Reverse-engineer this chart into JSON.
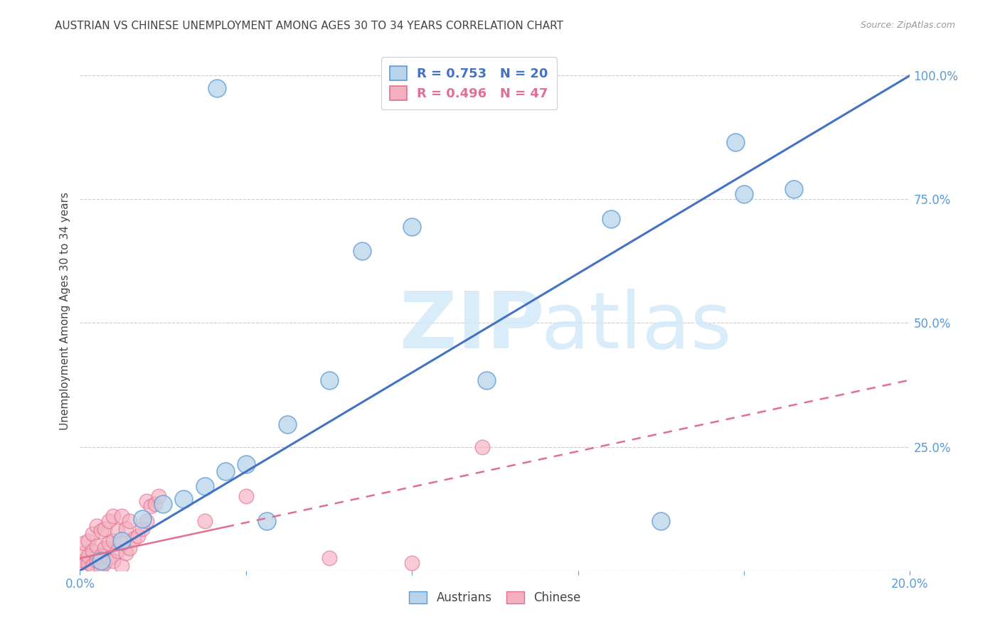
{
  "title": "AUSTRIAN VS CHINESE UNEMPLOYMENT AMONG AGES 30 TO 34 YEARS CORRELATION CHART",
  "source": "Source: ZipAtlas.com",
  "ylabel": "Unemployment Among Ages 30 to 34 years",
  "xlim": [
    0.0,
    0.2
  ],
  "ylim": [
    0.0,
    1.05
  ],
  "x_ticks": [
    0.0,
    0.04,
    0.08,
    0.12,
    0.16,
    0.2
  ],
  "y_ticks": [
    0.0,
    0.25,
    0.5,
    0.75,
    1.0
  ],
  "austrians_x": [
    0.033,
    0.068,
    0.098,
    0.128,
    0.158,
    0.172,
    0.005,
    0.01,
    0.015,
    0.02,
    0.025,
    0.03,
    0.035,
    0.04,
    0.045,
    0.06,
    0.14,
    0.16,
    0.05,
    0.08
  ],
  "austrians_y": [
    0.975,
    0.645,
    0.385,
    0.71,
    0.865,
    0.77,
    0.02,
    0.06,
    0.105,
    0.135,
    0.145,
    0.17,
    0.2,
    0.215,
    0.1,
    0.385,
    0.1,
    0.76,
    0.295,
    0.695
  ],
  "chinese_x": [
    0.0,
    0.001,
    0.001,
    0.001,
    0.002,
    0.002,
    0.002,
    0.003,
    0.003,
    0.003,
    0.004,
    0.004,
    0.004,
    0.005,
    0.005,
    0.005,
    0.006,
    0.006,
    0.006,
    0.007,
    0.007,
    0.007,
    0.008,
    0.008,
    0.008,
    0.009,
    0.009,
    0.01,
    0.01,
    0.01,
    0.011,
    0.011,
    0.012,
    0.012,
    0.013,
    0.014,
    0.015,
    0.016,
    0.016,
    0.017,
    0.018,
    0.019,
    0.06,
    0.08,
    0.097,
    0.04,
    0.03
  ],
  "chinese_y": [
    0.015,
    0.02,
    0.035,
    0.055,
    0.015,
    0.03,
    0.06,
    0.01,
    0.04,
    0.075,
    0.02,
    0.05,
    0.09,
    0.005,
    0.03,
    0.08,
    0.015,
    0.045,
    0.085,
    0.025,
    0.055,
    0.1,
    0.02,
    0.06,
    0.11,
    0.04,
    0.08,
    0.01,
    0.055,
    0.11,
    0.035,
    0.085,
    0.045,
    0.1,
    0.065,
    0.07,
    0.085,
    0.1,
    0.14,
    0.13,
    0.135,
    0.15,
    0.025,
    0.015,
    0.25,
    0.15,
    0.1
  ],
  "aus_line_x": [
    0.0,
    0.2
  ],
  "aus_line_y": [
    0.0,
    1.0
  ],
  "chi_line_x": [
    0.0,
    0.2
  ],
  "chi_line_y": [
    0.025,
    0.38
  ],
  "chi_dash_line_x": [
    0.04,
    0.2
  ],
  "chi_dash_line_y": [
    0.1,
    0.38
  ],
  "austrians_face_color": "#b8d4ea",
  "austrians_edge_color": "#5b9bd5",
  "chinese_face_color": "#f5b0c0",
  "chinese_edge_color": "#e07090",
  "austrians_line_color": "#4472c4",
  "chinese_line_color": "#e07090",
  "R_austrians": "0.753",
  "N_austrians": "20",
  "R_chinese": "0.496",
  "N_chinese": "47",
  "axis_color": "#5b9bd5",
  "grid_color": "#cccccc",
  "title_color": "#444444",
  "source_color": "#999999",
  "watermark_color": "#d0e8f8"
}
